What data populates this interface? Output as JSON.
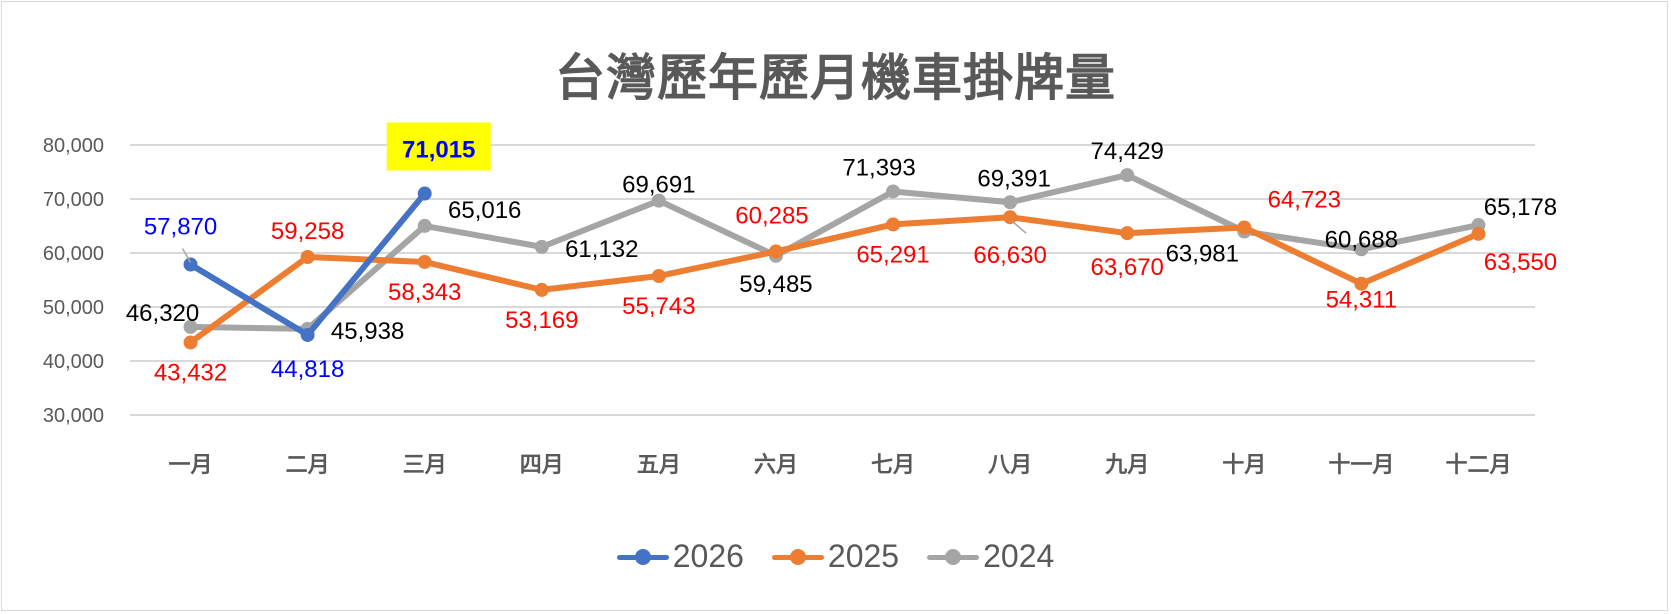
{
  "chart_data": {
    "type": "line",
    "title": "台灣歷年歷月機車掛牌量",
    "xlabel": "",
    "ylabel": "",
    "categories": [
      "一月",
      "二月",
      "三月",
      "四月",
      "五月",
      "六月",
      "七月",
      "八月",
      "九月",
      "十月",
      "十一月",
      "十二月"
    ],
    "y_ticks": [
      "80,000",
      "70,000",
      "60,000",
      "50,000",
      "40,000",
      "30,000"
    ],
    "ylim": [
      30000,
      80000
    ],
    "grid": true,
    "legend_position": "bottom",
    "series": [
      {
        "name": "2026",
        "color": "#4472C4",
        "label_color": "#0000FF",
        "values": [
          57870,
          44818,
          71015,
          null,
          null,
          null,
          null,
          null,
          null,
          null,
          null,
          null
        ]
      },
      {
        "name": "2025",
        "color": "#ED7D31",
        "label_color": "#FF0000",
        "values": [
          43432,
          59258,
          58343,
          53169,
          55743,
          60285,
          65291,
          66630,
          63670,
          64723,
          54311,
          63550
        ]
      },
      {
        "name": "2024",
        "color": "#A5A5A5",
        "label_color": "#000000",
        "values": [
          46320,
          45938,
          65016,
          61132,
          69691,
          59485,
          71393,
          69391,
          74429,
          63981,
          60688,
          65178
        ]
      }
    ],
    "annotations": [
      {
        "text": "71,015",
        "series": "2026",
        "category": "三月",
        "highlight": "#FFFF00",
        "bold": true
      }
    ]
  },
  "title": "台灣歷年歷月機車掛牌量",
  "legend": [
    {
      "label": "2026",
      "color": "#4472C4"
    },
    {
      "label": "2025",
      "color": "#ED7D31"
    },
    {
      "label": "2024",
      "color": "#A5A5A5"
    }
  ],
  "labels": {
    "s2026": [
      "57,870",
      "44,818",
      "71,015"
    ],
    "s2025": [
      "43,432",
      "59,258",
      "58,343",
      "53,169",
      "55,743",
      "60,285",
      "65,291",
      "66,630",
      "63,670",
      "64,723",
      "54,311",
      "63,550"
    ],
    "s2024": [
      "46,320",
      "45,938",
      "65,016",
      "61,132",
      "69,691",
      "59,485",
      "71,393",
      "69,391",
      "74,429",
      "63,981",
      "60,688",
      "65,178"
    ]
  }
}
